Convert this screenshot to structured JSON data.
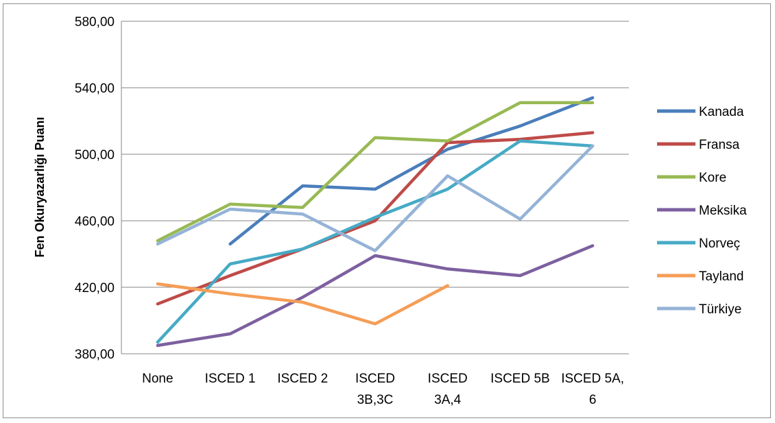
{
  "chart_data": {
    "type": "line",
    "ylabel": "Fen Okuryazarlığı Puanı",
    "xlabel": "",
    "title": "",
    "ylim": [
      380,
      580
    ],
    "yticks": [
      380,
      420,
      460,
      500,
      540,
      580
    ],
    "ytick_labels": [
      "380,00",
      "420,00",
      "460,00",
      "500,00",
      "540,00",
      "580,00"
    ],
    "categories": [
      "None",
      "ISCED 1",
      "ISCED 2",
      "ISCED 3B,3C",
      "ISCED 3A,4",
      "ISCED 5B",
      "ISCED 5A, 6"
    ],
    "category_label_lines": [
      [
        "None"
      ],
      [
        "ISCED 1"
      ],
      [
        "ISCED 2"
      ],
      [
        "ISCED",
        "3B,3C"
      ],
      [
        "ISCED",
        "3A,4"
      ],
      [
        "ISCED 5B"
      ],
      [
        "ISCED 5A,",
        "6"
      ]
    ],
    "grid": true,
    "legend_position": "right",
    "series": [
      {
        "name": "Kanada",
        "color": "#4a7ebb",
        "values": [
          null,
          446,
          481,
          479,
          503,
          517,
          534
        ]
      },
      {
        "name": "Fransa",
        "color": "#be4b48",
        "values": [
          410,
          427,
          443,
          460,
          507,
          509,
          513
        ]
      },
      {
        "name": "Kore",
        "color": "#98b954",
        "values": [
          448,
          470,
          468,
          510,
          508,
          531,
          531
        ]
      },
      {
        "name": "Meksika",
        "color": "#7d60a0",
        "values": [
          385,
          392,
          414,
          439,
          431,
          427,
          445
        ]
      },
      {
        "name": "Norveç",
        "color": "#46aac5",
        "values": [
          387,
          434,
          443,
          462,
          479,
          508,
          505
        ]
      },
      {
        "name": "Tayland",
        "color": "#f59d56",
        "values": [
          422,
          416,
          411,
          398,
          421,
          null,
          null
        ]
      },
      {
        "name": "Türkiye",
        "color": "#95b3d7",
        "values": [
          446,
          467,
          464,
          442,
          487,
          461,
          505
        ]
      }
    ]
  }
}
